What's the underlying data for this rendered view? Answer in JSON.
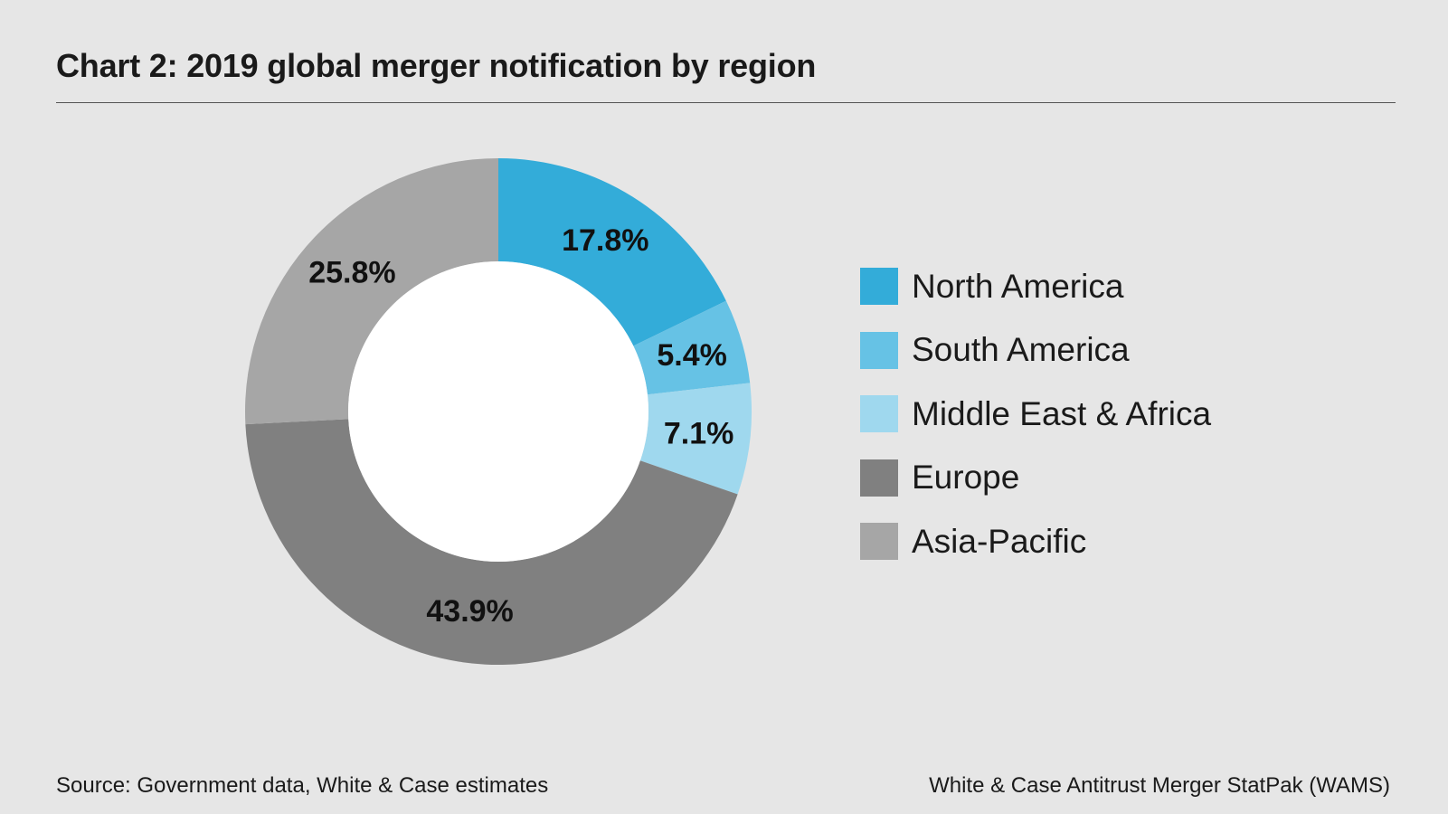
{
  "title": "Chart 2: 2019 global merger notification by region",
  "chart_data": {
    "type": "pie",
    "subtype": "donut",
    "slices": [
      {
        "name": "North America",
        "value": 17.8,
        "label": "17.8%",
        "color": "#33acd9"
      },
      {
        "name": "South America",
        "value": 5.4,
        "label": "5.4%",
        "color": "#66c2e5"
      },
      {
        "name": "Middle East & Africa",
        "value": 7.1,
        "label": "7.1%",
        "color": "#9fd8ee"
      },
      {
        "name": "Europe",
        "value": 43.9,
        "label": "43.9%",
        "color": "#808080"
      },
      {
        "name": "Asia-Pacific",
        "value": 25.8,
        "label": "25.8%",
        "color": "#a6a6a6"
      }
    ],
    "legend_position": "right",
    "hole_color": "#ffffff"
  },
  "footer": {
    "source": "Source: Government data, White & Case estimates",
    "credit": "White & Case Antitrust Merger StatPak (WAMS)"
  }
}
